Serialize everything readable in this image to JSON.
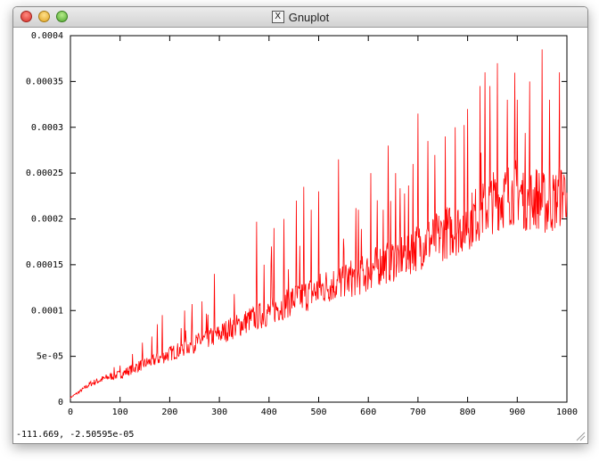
{
  "window": {
    "title": "Gnuplot",
    "app_icon": "x11-icon"
  },
  "status": {
    "coordinates": "-111.669, -2.50595e-05"
  },
  "colors": {
    "series": "#ff0000",
    "axis": "#000000",
    "background": "#ffffff"
  },
  "chart_data": {
    "type": "line",
    "title": "",
    "xlabel": "",
    "ylabel": "",
    "xlim": [
      0,
      1000
    ],
    "ylim": [
      0,
      0.0004
    ],
    "grid": false,
    "legend": "none",
    "x_ticks": [
      "0",
      "100",
      "200",
      "300",
      "400",
      "500",
      "600",
      "700",
      "800",
      "900",
      "1000"
    ],
    "y_ticks": [
      "0",
      "5e-05",
      "0.0001",
      "0.00015",
      "0.0002",
      "0.00025",
      "0.0003",
      "0.00035",
      "0.0004"
    ],
    "series": [
      {
        "name": "",
        "color": "#ff0000",
        "x": [
          0,
          20,
          40,
          60,
          80,
          100,
          120,
          140,
          160,
          180,
          200,
          220,
          240,
          260,
          280,
          300,
          320,
          340,
          360,
          380,
          400,
          420,
          440,
          460,
          480,
          500,
          520,
          540,
          560,
          580,
          600,
          620,
          640,
          660,
          680,
          700,
          720,
          740,
          760,
          780,
          800,
          820,
          840,
          860,
          880,
          900,
          920,
          940,
          960,
          980,
          1000
        ],
        "y": [
          5e-06,
          1.2e-05,
          2e-05,
          2.4e-05,
          2.8e-05,
          3e-05,
          3.5e-05,
          4e-05,
          4.4e-05,
          4.8e-05,
          5.3e-05,
          5.7e-05,
          6.2e-05,
          6.6e-05,
          7e-05,
          7.4e-05,
          8e-05,
          8.4e-05,
          9e-05,
          9.4e-05,
          9.8e-05,
          0.000104,
          0.00011,
          0.000114,
          0.000118,
          0.000122,
          0.000128,
          0.00013,
          0.000134,
          0.000138,
          0.000142,
          0.00015,
          0.000154,
          0.000158,
          0.000164,
          0.00017,
          0.000176,
          0.00018,
          0.000186,
          0.00019,
          0.000196,
          0.000206,
          0.000214,
          0.000222,
          0.000226,
          0.000232,
          0.00022,
          0.000224,
          0.000214,
          0.000222,
          0.000234
        ],
        "peaks": [
          [
            100,
            4e-05
          ],
          [
            175,
            8.5e-05
          ],
          [
            185,
            9.5e-05
          ],
          [
            230,
            0.0001
          ],
          [
            245,
            0.000107
          ],
          [
            265,
            0.00011
          ],
          [
            290,
            0.00014
          ],
          [
            330,
            0.000118
          ],
          [
            375,
            0.000197
          ],
          [
            390,
            0.00015
          ],
          [
            405,
            0.00017
          ],
          [
            410,
            0.00019
          ],
          [
            430,
            0.0002
          ],
          [
            455,
            0.00022
          ],
          [
            470,
            0.000235
          ],
          [
            485,
            0.00021
          ],
          [
            500,
            0.00023
          ],
          [
            540,
            0.000265
          ],
          [
            580,
            0.00021
          ],
          [
            605,
            0.00025
          ],
          [
            630,
            0.00021
          ],
          [
            640,
            0.00028
          ],
          [
            655,
            0.00025
          ],
          [
            690,
            0.00026
          ],
          [
            700,
            0.000315
          ],
          [
            720,
            0.000285
          ],
          [
            755,
            0.00029
          ],
          [
            775,
            0.0003
          ],
          [
            800,
            0.00032
          ],
          [
            825,
            0.000345
          ],
          [
            835,
            0.00036
          ],
          [
            845,
            0.000345
          ],
          [
            860,
            0.00037
          ],
          [
            880,
            0.00033
          ],
          [
            900,
            0.00033
          ],
          [
            925,
            0.00035
          ],
          [
            950,
            0.000385
          ],
          [
            965,
            0.00033
          ],
          [
            985,
            0.00036
          ],
          [
            995,
            0.000245
          ]
        ]
      }
    ]
  }
}
